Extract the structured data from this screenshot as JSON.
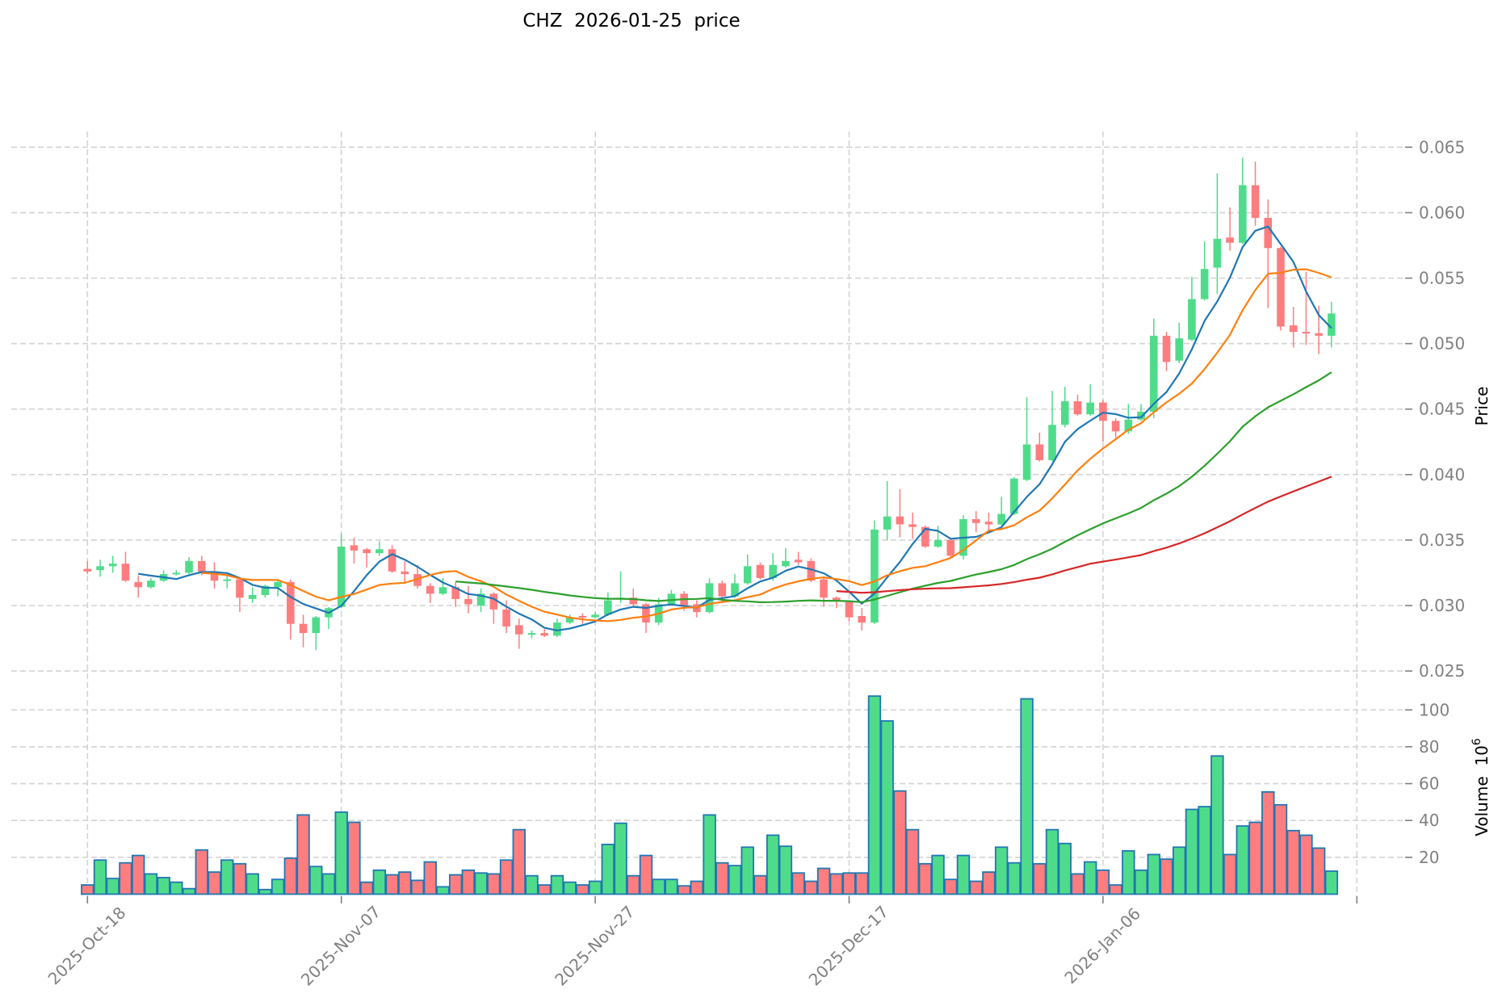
{
  "chart_data": {
    "type": "candlestick",
    "title": "CHZ  2026-01-25  price",
    "start_date": "2025-10-18",
    "ylabel": "Price",
    "volume_label": "Volume",
    "volume_unit_base": "10",
    "volume_unit_exp": "6",
    "price_ylim": [
      0.025,
      0.065
    ],
    "price_ticks": [
      "0.025",
      "0.030",
      "0.035",
      "0.040",
      "0.045",
      "0.050",
      "0.055",
      "0.060",
      "0.065"
    ],
    "volume_ticks": [
      "20",
      "40",
      "60",
      "80",
      "100"
    ],
    "x_ticks": [
      {
        "index": 0,
        "label": "2025-Oct-18"
      },
      {
        "index": 20,
        "label": "2025-Nov-07"
      },
      {
        "index": 40,
        "label": "2025-Nov-27"
      },
      {
        "index": 60,
        "label": "2025-Dec-17"
      },
      {
        "index": 80,
        "label": "2026-Jan-06"
      }
    ],
    "grid": true,
    "colors": {
      "up": "#4fdc8a",
      "down": "#ff7d7f",
      "volume_edge": "#1f77b4"
    },
    "moving_averages": [
      {
        "window": 5,
        "color": "#1f77b4"
      },
      {
        "window": 10,
        "color": "#ff7f0e"
      },
      {
        "window": 30,
        "color": "#2ca02c"
      },
      {
        "window": 60,
        "color": "#d62728"
      }
    ],
    "ohlc_fields": [
      "open",
      "high",
      "low",
      "close"
    ],
    "ohlc": [
      [
        0.0328,
        0.0334,
        0.0324,
        0.0326
      ],
      [
        0.0327,
        0.0335,
        0.0322,
        0.033
      ],
      [
        0.033,
        0.0338,
        0.0325,
        0.0332
      ],
      [
        0.0332,
        0.0341,
        0.0318,
        0.0319
      ],
      [
        0.0318,
        0.0323,
        0.0306,
        0.0314
      ],
      [
        0.0314,
        0.0321,
        0.0313,
        0.0319
      ],
      [
        0.0319,
        0.0327,
        0.0318,
        0.0324
      ],
      [
        0.0324,
        0.0327,
        0.0323,
        0.0325
      ],
      [
        0.0325,
        0.0337,
        0.0324,
        0.0334
      ],
      [
        0.0334,
        0.0338,
        0.0323,
        0.0326
      ],
      [
        0.0326,
        0.0333,
        0.0313,
        0.0319
      ],
      [
        0.0319,
        0.0324,
        0.0313,
        0.032
      ],
      [
        0.032,
        0.0321,
        0.0295,
        0.0306
      ],
      [
        0.0305,
        0.0314,
        0.0302,
        0.0308
      ],
      [
        0.0308,
        0.0316,
        0.0306,
        0.0315
      ],
      [
        0.0314,
        0.0319,
        0.0307,
        0.0318
      ],
      [
        0.0318,
        0.032,
        0.0274,
        0.0286
      ],
      [
        0.0286,
        0.0293,
        0.0268,
        0.0279
      ],
      [
        0.0279,
        0.0292,
        0.0266,
        0.0291
      ],
      [
        0.0291,
        0.0299,
        0.0282,
        0.0298
      ],
      [
        0.0299,
        0.0355,
        0.0298,
        0.0345
      ],
      [
        0.0346,
        0.0352,
        0.0332,
        0.0342
      ],
      [
        0.0343,
        0.0344,
        0.0329,
        0.034
      ],
      [
        0.034,
        0.0349,
        0.0338,
        0.0343
      ],
      [
        0.0343,
        0.0346,
        0.0325,
        0.0326
      ],
      [
        0.0326,
        0.0334,
        0.0317,
        0.0324
      ],
      [
        0.0324,
        0.0331,
        0.0313,
        0.0315
      ],
      [
        0.0315,
        0.0317,
        0.0302,
        0.0309
      ],
      [
        0.0309,
        0.0321,
        0.0308,
        0.0314
      ],
      [
        0.0314,
        0.0318,
        0.0299,
        0.0305
      ],
      [
        0.0305,
        0.0315,
        0.0294,
        0.0301
      ],
      [
        0.03,
        0.0313,
        0.0295,
        0.0309
      ],
      [
        0.0309,
        0.031,
        0.0286,
        0.0297
      ],
      [
        0.0297,
        0.0304,
        0.0279,
        0.0284
      ],
      [
        0.0285,
        0.029,
        0.0267,
        0.0278
      ],
      [
        0.0278,
        0.0281,
        0.0275,
        0.0279
      ],
      [
        0.0279,
        0.0282,
        0.0276,
        0.0277
      ],
      [
        0.0277,
        0.029,
        0.0276,
        0.0287
      ],
      [
        0.0287,
        0.0293,
        0.0286,
        0.0291
      ],
      [
        0.0292,
        0.0294,
        0.0286,
        0.0291
      ],
      [
        0.0291,
        0.0295,
        0.029,
        0.0293
      ],
      [
        0.0293,
        0.031,
        0.0292,
        0.0304
      ],
      [
        0.0305,
        0.0326,
        0.0302,
        0.0306
      ],
      [
        0.0306,
        0.0313,
        0.0299,
        0.0301
      ],
      [
        0.0301,
        0.0302,
        0.0279,
        0.0287
      ],
      [
        0.0287,
        0.0306,
        0.0285,
        0.0301
      ],
      [
        0.0301,
        0.0312,
        0.03,
        0.0309
      ],
      [
        0.0309,
        0.0311,
        0.0296,
        0.03
      ],
      [
        0.0301,
        0.0304,
        0.0291,
        0.0295
      ],
      [
        0.0295,
        0.0321,
        0.0294,
        0.0317
      ],
      [
        0.0317,
        0.0319,
        0.0302,
        0.0307
      ],
      [
        0.0307,
        0.0324,
        0.0306,
        0.0317
      ],
      [
        0.0317,
        0.0339,
        0.0316,
        0.033
      ],
      [
        0.0331,
        0.0333,
        0.032,
        0.0321
      ],
      [
        0.0321,
        0.034,
        0.0319,
        0.0331
      ],
      [
        0.033,
        0.0344,
        0.0329,
        0.0334
      ],
      [
        0.0335,
        0.0341,
        0.0331,
        0.0333
      ],
      [
        0.0334,
        0.0336,
        0.0318,
        0.0319
      ],
      [
        0.032,
        0.0321,
        0.0299,
        0.0306
      ],
      [
        0.0306,
        0.0307,
        0.0298,
        0.0304
      ],
      [
        0.0303,
        0.0304,
        0.0288,
        0.0291
      ],
      [
        0.0292,
        0.0298,
        0.0281,
        0.0287
      ],
      [
        0.0287,
        0.0365,
        0.0286,
        0.0358
      ],
      [
        0.0358,
        0.0395,
        0.035,
        0.0368
      ],
      [
        0.0368,
        0.0389,
        0.0352,
        0.0362
      ],
      [
        0.0362,
        0.0371,
        0.0351,
        0.036
      ],
      [
        0.036,
        0.0361,
        0.0344,
        0.0345
      ],
      [
        0.0345,
        0.0361,
        0.0344,
        0.035
      ],
      [
        0.035,
        0.0351,
        0.0337,
        0.0338
      ],
      [
        0.0338,
        0.0369,
        0.0335,
        0.0366
      ],
      [
        0.0366,
        0.0372,
        0.0356,
        0.0363
      ],
      [
        0.0364,
        0.0371,
        0.0356,
        0.0362
      ],
      [
        0.0362,
        0.0383,
        0.0361,
        0.037
      ],
      [
        0.037,
        0.0398,
        0.0369,
        0.0397
      ],
      [
        0.0396,
        0.0459,
        0.0395,
        0.0423
      ],
      [
        0.0423,
        0.0432,
        0.041,
        0.0411
      ],
      [
        0.0411,
        0.0464,
        0.041,
        0.0438
      ],
      [
        0.0438,
        0.0467,
        0.0436,
        0.0456
      ],
      [
        0.0456,
        0.0461,
        0.0445,
        0.0446
      ],
      [
        0.0446,
        0.0469,
        0.0445,
        0.0455
      ],
      [
        0.0455,
        0.0457,
        0.0425,
        0.0441
      ],
      [
        0.0441,
        0.0443,
        0.0428,
        0.0433
      ],
      [
        0.0433,
        0.0454,
        0.0431,
        0.0442
      ],
      [
        0.0442,
        0.0454,
        0.0441,
        0.0448
      ],
      [
        0.0448,
        0.0519,
        0.0443,
        0.0506
      ],
      [
        0.0506,
        0.0509,
        0.0479,
        0.0486
      ],
      [
        0.0487,
        0.0516,
        0.0485,
        0.0504
      ],
      [
        0.0503,
        0.0551,
        0.0502,
        0.0534
      ],
      [
        0.0534,
        0.0578,
        0.0533,
        0.0557
      ],
      [
        0.0558,
        0.063,
        0.0538,
        0.058
      ],
      [
        0.0581,
        0.0604,
        0.0571,
        0.0577
      ],
      [
        0.0577,
        0.0642,
        0.0576,
        0.0621
      ],
      [
        0.0621,
        0.0639,
        0.059,
        0.0596
      ],
      [
        0.0596,
        0.061,
        0.0527,
        0.0573
      ],
      [
        0.0573,
        0.0574,
        0.051,
        0.0513
      ],
      [
        0.0514,
        0.0528,
        0.0497,
        0.0509
      ],
      [
        0.0509,
        0.0555,
        0.0499,
        0.0508
      ],
      [
        0.0508,
        0.0529,
        0.0492,
        0.0506
      ],
      [
        0.0506,
        0.0532,
        0.0497,
        0.0523
      ]
    ],
    "volume_millions": [
      5,
      18.5,
      8.5,
      17,
      21,
      11,
      9,
      6.5,
      3,
      24,
      12,
      18.5,
      16.5,
      11,
      2.5,
      8,
      19.5,
      43,
      15,
      11,
      44.5,
      39,
      6.5,
      13,
      10.5,
      12,
      7.5,
      17.5,
      4,
      10.5,
      13,
      11.5,
      11,
      18.5,
      35,
      10,
      5,
      10,
      6.5,
      5,
      7,
      27,
      38.5,
      10,
      21,
      8,
      8,
      4.5,
      7,
      43,
      17,
      15.5,
      25.5,
      10,
      32,
      26,
      11.5,
      7,
      14,
      11,
      11.5,
      11.5,
      107.5,
      94,
      56,
      35,
      16.5,
      21,
      8,
      21,
      7,
      12,
      25.5,
      17,
      106,
      16.5,
      35,
      27.5,
      11,
      17.5,
      13,
      5,
      23.5,
      13,
      21.5,
      19,
      25.5,
      46,
      47.5,
      75,
      21.5,
      37,
      39,
      55.5,
      48.5,
      34.5,
      32,
      25,
      12.5
    ]
  }
}
